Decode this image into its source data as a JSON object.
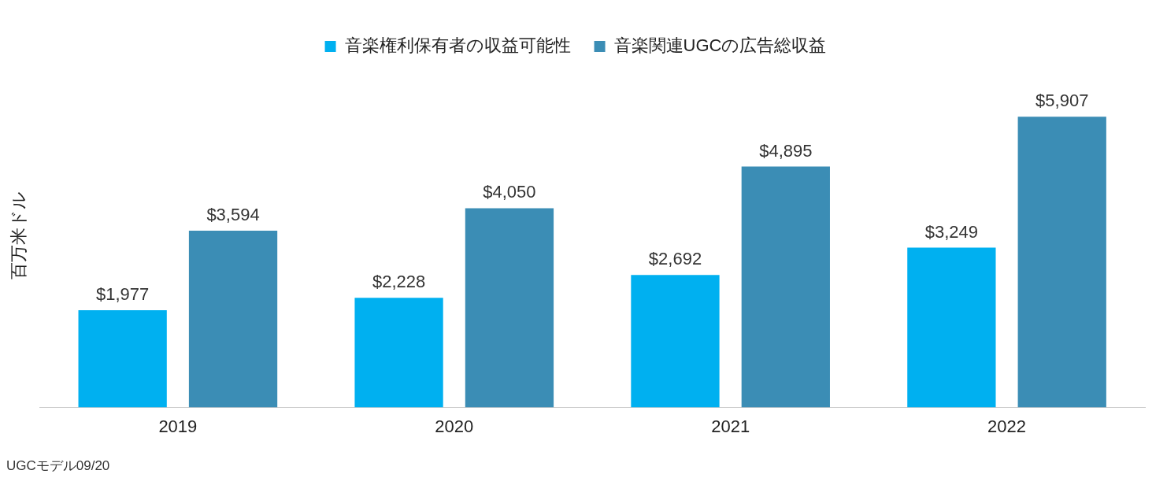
{
  "chart_data": {
    "type": "bar",
    "ylabel": "百万米ドル",
    "categories": [
      "2019",
      "2020",
      "2021",
      "2022"
    ],
    "series": [
      {
        "name": "音楽権利保有者の収益可能性",
        "color": "#00b0f0",
        "values": [
          1977,
          2228,
          2692,
          3249
        ],
        "value_labels": [
          "$1,977",
          "$2,228",
          "$2,692",
          "$3,249"
        ]
      },
      {
        "name": "音楽関連UGCの広告総収益",
        "color": "#3b8db5",
        "values": [
          3594,
          4050,
          4895,
          5907
        ],
        "value_labels": [
          "$3,594",
          "$4,050",
          "$4,895",
          "$5,907"
        ]
      }
    ],
    "legend": "top",
    "grid": false,
    "tick_labels": "x",
    "annotations": [
      "UGCモデル09/20"
    ]
  }
}
